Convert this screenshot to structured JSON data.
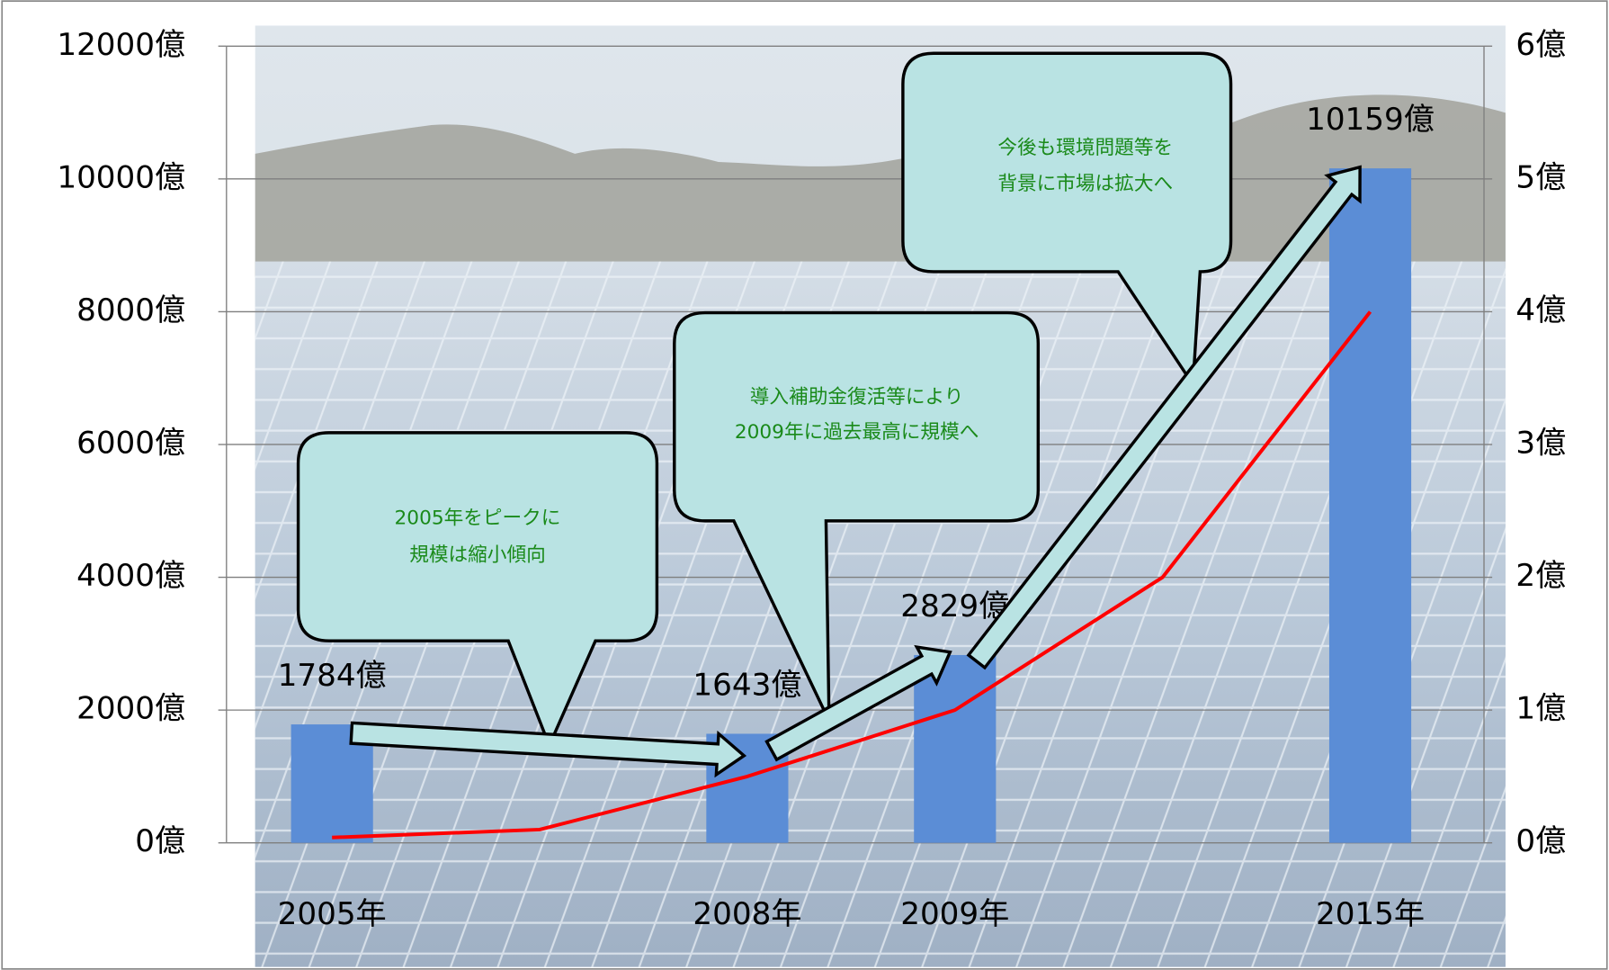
{
  "chart_data": {
    "type": "bar",
    "categories": [
      "2005年",
      null,
      "2008年",
      "2009年",
      null,
      "2015年"
    ],
    "series": [
      {
        "type": "bar",
        "color": "#5b8dd6",
        "values": [
          1784,
          null,
          1643,
          2829,
          null,
          10159
        ],
        "value_labels": [
          "1784億",
          null,
          "1643億",
          "2829億",
          null,
          "10159億"
        ]
      },
      {
        "type": "line",
        "axis": "y2",
        "color": "#ff0000",
        "values": [
          0.04,
          0.1,
          0.5,
          1,
          2,
          4
        ]
      }
    ],
    "ylim": [
      0,
      12000
    ],
    "yticks": [
      {
        "value": 0,
        "label": "0億"
      },
      {
        "value": 2000,
        "label": "2000億"
      },
      {
        "value": 4000,
        "label": "4000億"
      },
      {
        "value": 6000,
        "label": "6000億"
      },
      {
        "value": 8000,
        "label": "8000億"
      },
      {
        "value": 10000,
        "label": "10000億"
      },
      {
        "value": 12000,
        "label": "12000億"
      }
    ],
    "y2lim": [
      0,
      6
    ],
    "y2ticks": [
      {
        "value": 0,
        "label": "0億"
      },
      {
        "value": 1,
        "label": "1億"
      },
      {
        "value": 2,
        "label": "2億"
      },
      {
        "value": 3,
        "label": "3億"
      },
      {
        "value": 4,
        "label": "4億"
      },
      {
        "value": 5,
        "label": "5億"
      },
      {
        "value": 6,
        "label": "6億"
      }
    ],
    "grid": true,
    "annotations": [
      [
        "2005年をピークに",
        "規模は縮小傾向"
      ],
      [
        "導入補助金復活等により",
        "2009年に過去最高に規模へ"
      ],
      [
        "今後も環境問題等を",
        "背景に市場は拡大へ"
      ]
    ]
  }
}
